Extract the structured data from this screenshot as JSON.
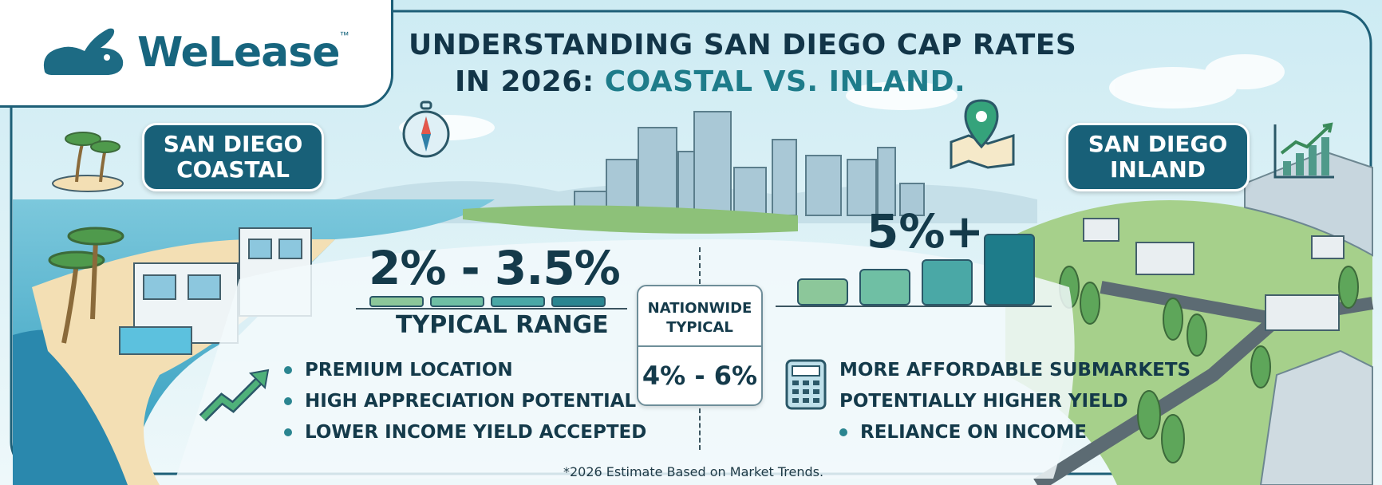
{
  "brand": {
    "name": "WeLease",
    "trademark": "™",
    "icon": "rabbit-logo-icon"
  },
  "title": {
    "line1": "UNDERSTANDING SAN DIEGO CAP RATES",
    "line2_plain": "IN 2026: ",
    "line2_highlight": "COASTAL VS. INLAND."
  },
  "coastal": {
    "label_line1": "SAN DIEGO",
    "label_line2": "COASTAL",
    "range": "2% - 3.5%",
    "range_label": "TYPICAL RANGE",
    "bullets": [
      "PREMIUM LOCATION",
      "HIGH APPRECIATION POTENTIAL",
      "LOWER INCOME YIELD ACCEPTED"
    ]
  },
  "inland": {
    "label_line1": "SAN DIEGO",
    "label_line2": "INLAND",
    "value": "5%+",
    "bullets": [
      "MORE AFFORDABLE SUBMARKETS",
      "POTENTIALLY HIGHER YIELD",
      "RELIANCE ON INCOME"
    ]
  },
  "nationwide": {
    "label_line1": "NATIONWIDE",
    "label_line2": "TYPICAL",
    "value": "4% - 6%"
  },
  "footnote": "*2026 Estimate Based on Market Trends.",
  "icons": [
    "palm-tree-island-icon",
    "compass-icon",
    "map-pin-icon",
    "growth-chart-icon",
    "trend-arrow-icon",
    "calculator-icon"
  ],
  "colors": {
    "primary": "#186078",
    "accent": "#1e7c8a",
    "text": "#143a4a",
    "background": "#e6f4f7"
  }
}
